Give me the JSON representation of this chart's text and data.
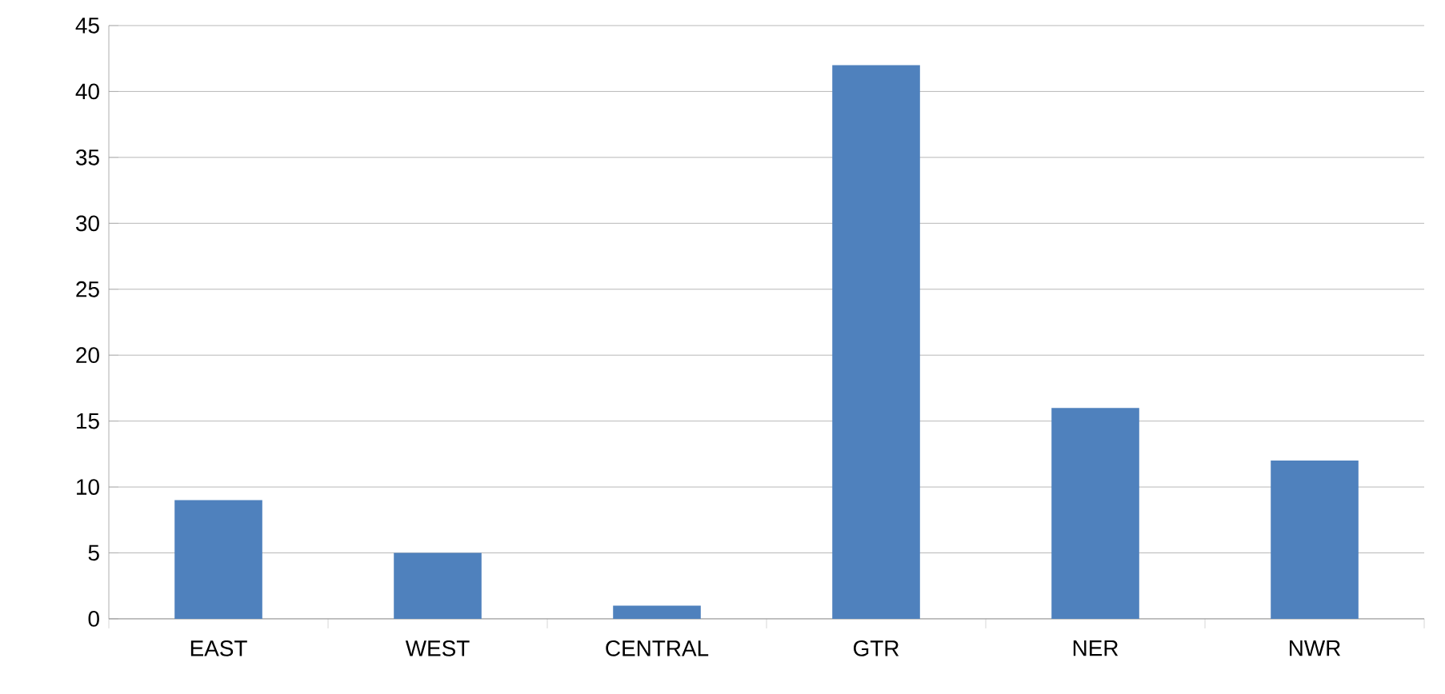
{
  "chart_data": {
    "type": "bar",
    "categories": [
      "EAST",
      "WEST",
      "CENTRAL",
      "GTR",
      "NER",
      "NWR"
    ],
    "values": [
      9,
      5,
      1,
      42,
      16,
      12
    ],
    "color": "#4f81bd",
    "ylim": [
      0,
      45
    ],
    "yticks": [
      0,
      5,
      10,
      15,
      20,
      25,
      30,
      35,
      40,
      45
    ],
    "grid": "y"
  }
}
